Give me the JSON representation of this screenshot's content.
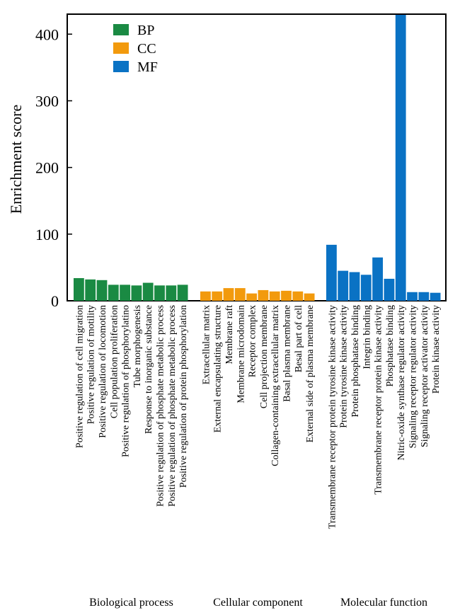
{
  "chart_data": {
    "type": "bar",
    "ylabel": "Enrichment score",
    "ylim": [
      0,
      430
    ],
    "yticks": [
      0,
      100,
      200,
      300,
      400
    ],
    "legend": {
      "placement": "top-left",
      "entries": [
        {
          "key": "BP",
          "label": "BP",
          "color": "#1a8a43"
        },
        {
          "key": "CC",
          "label": "CC",
          "color": "#f29a0d"
        },
        {
          "key": "MF",
          "label": "MF",
          "color": "#0a72c4"
        }
      ]
    },
    "groups": [
      {
        "key": "BP",
        "label": "Biological process",
        "categories": [
          "Positive regulation of cell migration",
          "Positive regulation of motility",
          "Positive regulation of locomotion",
          "Cell population proliferation",
          "Positive regulation of phosphorylatino",
          "Tube morphogenesis",
          "Response to inorganic substance",
          "Positive regulation of phosphate metabolic process",
          "Positive regulation of phosphate metabolic process",
          "Positive regulation of protein phosphorylation"
        ],
        "values": [
          34,
          32,
          31,
          24,
          24,
          23,
          27,
          23,
          23,
          24
        ]
      },
      {
        "key": "CC",
        "label": "Cellular component",
        "categories": [
          "Extracellular matrix",
          "External encapsulating structure",
          "Membrane raft",
          "Membrane microdomain",
          "Receptor complex",
          "Cell projection membrane",
          "Collagen-containing extracellular matrix",
          "Basal plasma membrane",
          "Besal part of cell",
          "External side of plasma membrane"
        ],
        "values": [
          14,
          14,
          19,
          19,
          11,
          16,
          14,
          15,
          14,
          11
        ]
      },
      {
        "key": "MF",
        "label": "Molecular function",
        "categories": [
          "Transmembrane receptor protein tyrosine kinase activity",
          "Protein tyrosine kinase activity",
          "Protein phosphatase binding",
          "Integrin binding",
          "Transmembrane receptor protein kinase activity",
          "Phosphatase binding",
          "Nitric-oxide synthase regulator activity",
          "Signaling receptor regulator activity",
          "Signaling receptor activator activity",
          "Protein kinase activity"
        ],
        "values": [
          84,
          45,
          43,
          39,
          65,
          33,
          429,
          13,
          13,
          12
        ]
      }
    ]
  }
}
